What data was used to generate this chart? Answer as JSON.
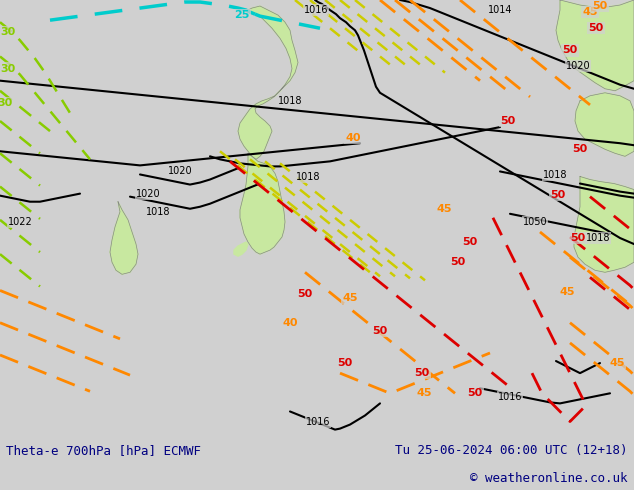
{
  "title_left": "Theta-e 700hPa [hPa] ECMWF",
  "title_right": "Tu 25-06-2024 06:00 UTC (12+18)",
  "copyright": "© weatheronline.co.uk",
  "bg_color": "#d0d0d0",
  "sea_color": "#d0d0d0",
  "land_outline_color": "#888888",
  "green_land_color": "#c8e8a0",
  "bottom_bar_color": "#e8e8e8",
  "title_color": "#000080",
  "copyright_color": "#000080",
  "figsize": [
    6.34,
    4.9
  ],
  "dpi": 100,
  "colors": {
    "black": "#000000",
    "cyan": "#00cccc",
    "lime": "#88cc00",
    "yellow": "#cccc00",
    "orange": "#ff8800",
    "red": "#dd0000"
  }
}
